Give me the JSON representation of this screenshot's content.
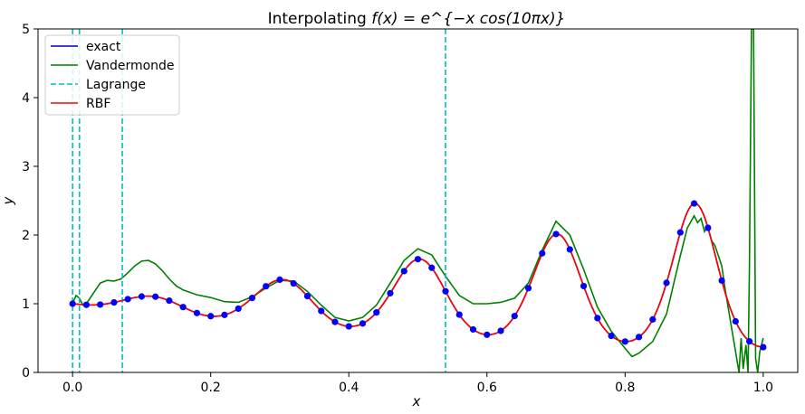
{
  "chart_data": {
    "type": "line",
    "title": "Interpolating",
    "title_math": "f(x) = e^{−x cos(10πx)}",
    "xlabel": "x",
    "ylabel": "y",
    "xlim": [
      -0.05,
      1.05
    ],
    "ylim": [
      0,
      5
    ],
    "x_ticks": [
      0.0,
      0.2,
      0.4,
      0.6,
      0.8,
      1.0
    ],
    "x_tick_labels": [
      "0.0",
      "0.2",
      "0.4",
      "0.6",
      "0.8",
      "1.0"
    ],
    "y_ticks": [
      0,
      1,
      2,
      3,
      4,
      5
    ],
    "y_tick_labels": [
      "0",
      "1",
      "2",
      "3",
      "4",
      "5"
    ],
    "grid": false,
    "legend_position": "top-left",
    "function": "exp(-x*cos(10*pi*x))",
    "sample_points": {
      "count": 51,
      "x_start": 0.0,
      "x_end": 1.0,
      "color": "#0000ff"
    },
    "series": [
      {
        "name": "exact",
        "color": "#0000bf",
        "style": "solid"
      },
      {
        "name": "Vandermonde",
        "color": "#008000",
        "style": "solid"
      },
      {
        "name": "Lagrange",
        "color": "#00bfbf",
        "style": "dashed",
        "vertical_lines_x": [
          0.0,
          0.01,
          0.072,
          0.54
        ]
      },
      {
        "name": "RBF",
        "color": "#ff0000",
        "style": "solid"
      }
    ],
    "vandermonde_points": [
      [
        0.0,
        1.0
      ],
      [
        0.005,
        1.12
      ],
      [
        0.01,
        1.08
      ],
      [
        0.015,
        0.98
      ],
      [
        0.02,
        1.0
      ],
      [
        0.03,
        1.15
      ],
      [
        0.04,
        1.3
      ],
      [
        0.05,
        1.34
      ],
      [
        0.06,
        1.33
      ],
      [
        0.07,
        1.36
      ],
      [
        0.08,
        1.45
      ],
      [
        0.09,
        1.55
      ],
      [
        0.1,
        1.62
      ],
      [
        0.11,
        1.63
      ],
      [
        0.12,
        1.58
      ],
      [
        0.13,
        1.48
      ],
      [
        0.14,
        1.36
      ],
      [
        0.15,
        1.26
      ],
      [
        0.16,
        1.2
      ],
      [
        0.18,
        1.13
      ],
      [
        0.2,
        1.09
      ],
      [
        0.22,
        1.03
      ],
      [
        0.24,
        1.02
      ],
      [
        0.26,
        1.1
      ],
      [
        0.28,
        1.23
      ],
      [
        0.3,
        1.34
      ],
      [
        0.32,
        1.33
      ],
      [
        0.34,
        1.18
      ],
      [
        0.36,
        0.98
      ],
      [
        0.38,
        0.8
      ],
      [
        0.4,
        0.75
      ],
      [
        0.42,
        0.8
      ],
      [
        0.44,
        0.98
      ],
      [
        0.46,
        1.3
      ],
      [
        0.48,
        1.63
      ],
      [
        0.5,
        1.8
      ],
      [
        0.52,
        1.71
      ],
      [
        0.54,
        1.4
      ],
      [
        0.56,
        1.12
      ],
      [
        0.58,
        1.0
      ],
      [
        0.6,
        1.0
      ],
      [
        0.62,
        1.02
      ],
      [
        0.64,
        1.08
      ],
      [
        0.66,
        1.3
      ],
      [
        0.68,
        1.78
      ],
      [
        0.7,
        2.2
      ],
      [
        0.72,
        2.0
      ],
      [
        0.74,
        1.5
      ],
      [
        0.76,
        0.95
      ],
      [
        0.78,
        0.6
      ],
      [
        0.8,
        0.35
      ],
      [
        0.81,
        0.23
      ],
      [
        0.82,
        0.28
      ],
      [
        0.84,
        0.45
      ],
      [
        0.86,
        0.85
      ],
      [
        0.88,
        1.7
      ],
      [
        0.89,
        2.1
      ],
      [
        0.9,
        2.28
      ],
      [
        0.905,
        2.18
      ],
      [
        0.91,
        2.24
      ],
      [
        0.915,
        2.05
      ],
      [
        0.92,
        2.12
      ],
      [
        0.925,
        1.92
      ],
      [
        0.93,
        1.85
      ],
      [
        0.935,
        1.7
      ],
      [
        0.94,
        1.55
      ],
      [
        0.945,
        1.2
      ],
      [
        0.95,
        0.9
      ],
      [
        0.955,
        0.6
      ],
      [
        0.96,
        0.3
      ],
      [
        0.965,
        0.0
      ],
      [
        0.968,
        0.5
      ],
      [
        0.971,
        0.05
      ],
      [
        0.975,
        0.4
      ],
      [
        0.978,
        0.0
      ],
      [
        0.98,
        1.5
      ],
      [
        0.983,
        5.0
      ],
      [
        0.986,
        5.0
      ],
      [
        0.989,
        0.2
      ],
      [
        0.992,
        0.0
      ],
      [
        0.995,
        0.3
      ],
      [
        1.0,
        0.5
      ]
    ]
  }
}
